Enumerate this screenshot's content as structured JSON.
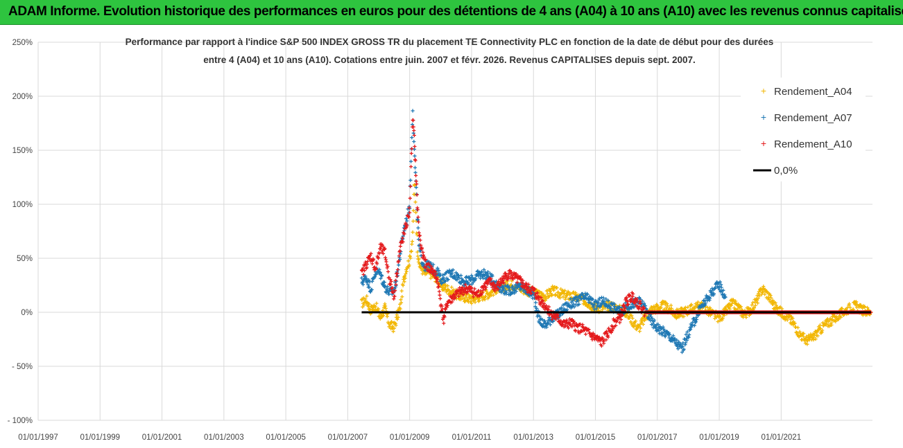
{
  "banner": {
    "text": "ADAM Informe. Evolution historique des performances en euros pour des détentions de 4 ans (A04) à 10 ans (A10) avec les revenus connus capitalisés"
  },
  "colors": {
    "banner_bg": "#2ec43f",
    "A04": "#f2b705",
    "A07": "#1f78b4",
    "A10": "#e41a1c",
    "zero_line": "#000000",
    "grid": "#d9d9d9"
  },
  "chart_data": {
    "type": "scatter",
    "title_line1": "Performance par rapport à l'indice S&P 500 INDEX GROSS TR  du placement TE Connectivity PLC en fonction de la date de début pour des durées",
    "title_line2": "entre 4 (A04) et 10 ans (A10). Cotations entre juin. 2007 et févr. 2026. Revenus CAPITALISES depuis sept. 2007.",
    "x_tick_labels": [
      "01/01/1997",
      "01/01/1999",
      "01/01/2001",
      "01/01/2003",
      "01/01/2005",
      "01/01/2007",
      "01/01/2009",
      "01/01/2011",
      "01/01/2013",
      "01/01/2015",
      "01/01/2017",
      "01/01/2019",
      "01/01/2021"
    ],
    "y_tick_labels": [
      "250%",
      "200%",
      "150%",
      "100%",
      "50%",
      "0%",
      "- 50%",
      "- 100%"
    ],
    "y_ticks": [
      250,
      200,
      150,
      100,
      50,
      0,
      -50,
      -100
    ],
    "ylim": [
      -100,
      250
    ],
    "xlim": [
      1997.0,
      2023.95
    ],
    "grid": true,
    "legend_position": "top-right",
    "legend": [
      {
        "key": "A04",
        "label": "Rendement_A04"
      },
      {
        "key": "A07",
        "label": "Rendement_A07"
      },
      {
        "key": "A10",
        "label": "Rendement_A10"
      },
      {
        "key": "zero",
        "label": "0,0%"
      }
    ],
    "series": [
      {
        "name": "Rendement_A04",
        "key": "A04",
        "x": [
          2007.45,
          2007.6,
          2007.75,
          2007.9,
          2008.05,
          2008.2,
          2008.35,
          2008.5,
          2008.6,
          2008.7,
          2008.8,
          2008.9,
          2009.0,
          2009.1,
          2009.15,
          2009.2,
          2009.25,
          2009.3,
          2009.4,
          2009.5,
          2009.6,
          2009.75,
          2009.9,
          2010.0,
          2010.2,
          2010.4,
          2010.6,
          2010.8,
          2011.0,
          2011.2,
          2011.4,
          2011.6,
          2011.8,
          2012.0,
          2012.2,
          2012.4,
          2012.6,
          2012.8,
          2013.0,
          2013.2,
          2013.4,
          2013.6,
          2013.8,
          2014.0,
          2014.2,
          2014.4,
          2014.6,
          2014.8,
          2015.0,
          2015.2,
          2015.4,
          2015.6,
          2015.8,
          2016.0,
          2016.2,
          2016.4,
          2016.6,
          2016.8,
          2017.0,
          2017.2,
          2017.4,
          2017.6,
          2017.8,
          2018.0,
          2018.2,
          2018.4,
          2018.6,
          2018.8,
          2019.0,
          2019.2,
          2019.4,
          2019.6,
          2019.8,
          2020.0,
          2020.2,
          2020.4,
          2020.6,
          2020.8,
          2021.0,
          2021.2,
          2021.4,
          2021.6,
          2021.8,
          2022.0,
          2022.2,
          2022.4,
          2022.6,
          2022.8,
          2023.0,
          2023.2,
          2023.4,
          2023.6,
          2023.9
        ],
        "y": [
          8,
          12,
          2,
          6,
          -5,
          4,
          -12,
          -14,
          -4,
          6,
          28,
          42,
          48,
          70,
          120,
          95,
          60,
          45,
          40,
          36,
          38,
          34,
          32,
          25,
          22,
          18,
          15,
          14,
          12,
          14,
          16,
          18,
          22,
          24,
          25,
          26,
          22,
          20,
          18,
          16,
          15,
          20,
          18,
          16,
          15,
          14,
          12,
          8,
          5,
          4,
          6,
          5,
          2,
          0,
          -8,
          -15,
          -5,
          2,
          4,
          6,
          3,
          -2,
          0,
          2,
          4,
          6,
          2,
          -2,
          -5,
          0,
          8,
          5,
          -2,
          2,
          10,
          22,
          15,
          5,
          0,
          -4,
          -10,
          -20,
          -26,
          -24,
          -18,
          -12,
          -8,
          -4,
          0,
          4,
          6,
          2,
          0
        ]
      },
      {
        "name": "Rendement_A07",
        "key": "A07",
        "x": [
          2007.45,
          2007.6,
          2007.75,
          2007.9,
          2008.05,
          2008.2,
          2008.35,
          2008.5,
          2008.6,
          2008.7,
          2008.8,
          2008.9,
          2009.0,
          2009.1,
          2009.15,
          2009.2,
          2009.25,
          2009.3,
          2009.4,
          2009.5,
          2009.6,
          2009.75,
          2009.9,
          2010.0,
          2010.2,
          2010.4,
          2010.6,
          2010.8,
          2011.0,
          2011.2,
          2011.4,
          2011.6,
          2011.8,
          2012.0,
          2012.2,
          2012.4,
          2012.6,
          2012.8,
          2013.0,
          2013.2,
          2013.4,
          2013.6,
          2013.8,
          2014.0,
          2014.2,
          2014.4,
          2014.6,
          2014.8,
          2015.0,
          2015.2,
          2015.4,
          2015.6,
          2015.8,
          2016.0,
          2016.2,
          2016.4,
          2016.6,
          2016.8,
          2017.0,
          2017.2,
          2017.4,
          2017.6,
          2017.8,
          2018.0,
          2018.2,
          2018.4,
          2018.6,
          2018.8,
          2019.0,
          2019.2
        ],
        "y": [
          28,
          32,
          22,
          38,
          36,
          24,
          18,
          20,
          35,
          55,
          75,
          85,
          100,
          190,
          150,
          120,
          90,
          60,
          48,
          42,
          44,
          40,
          38,
          30,
          34,
          36,
          32,
          28,
          30,
          34,
          36,
          32,
          26,
          22,
          20,
          22,
          24,
          20,
          16,
          -8,
          -12,
          -5,
          -2,
          4,
          8,
          10,
          14,
          12,
          6,
          10,
          8,
          4,
          0,
          5,
          8,
          10,
          4,
          -8,
          -14,
          -18,
          -22,
          -28,
          -34,
          -20,
          -8,
          4,
          12,
          20,
          26,
          14
        ]
      },
      {
        "name": "Rendement_A10",
        "key": "A10",
        "x": [
          2007.45,
          2007.6,
          2007.75,
          2007.9,
          2008.05,
          2008.2,
          2008.35,
          2008.5,
          2008.6,
          2008.7,
          2008.8,
          2008.9,
          2009.0,
          2009.1,
          2009.15,
          2009.2,
          2009.25,
          2009.3,
          2009.4,
          2009.5,
          2009.6,
          2009.75,
          2009.9,
          2010.0,
          2010.1,
          2010.2,
          2010.4,
          2010.6,
          2010.8,
          2011.0,
          2011.2,
          2011.4,
          2011.6,
          2011.8,
          2012.0,
          2012.2,
          2012.4,
          2012.6,
          2012.8,
          2013.0,
          2013.2,
          2013.4,
          2013.6,
          2013.8,
          2014.0,
          2014.2,
          2014.4,
          2014.6,
          2014.8,
          2015.0,
          2015.2,
          2015.4,
          2015.6,
          2015.8,
          2016.0,
          2016.2,
          2016.6,
          2017.0,
          2017.5,
          2018.0,
          2018.5,
          2019.0,
          2019.5,
          2020.0,
          2020.5,
          2021.0,
          2021.5,
          2022.0,
          2022.5,
          2023.0,
          2023.5,
          2023.9
        ],
        "y": [
          35,
          45,
          52,
          40,
          60,
          55,
          30,
          15,
          40,
          60,
          70,
          82,
          95,
          180,
          160,
          130,
          100,
          75,
          55,
          45,
          42,
          38,
          30,
          10,
          -8,
          8,
          14,
          18,
          22,
          20,
          16,
          24,
          28,
          22,
          30,
          36,
          32,
          28,
          22,
          20,
          12,
          5,
          -2,
          -6,
          -12,
          -10,
          -14,
          -16,
          -20,
          -24,
          -28,
          -20,
          -10,
          -5,
          10,
          15,
          0,
          0,
          0,
          0,
          0,
          0,
          0,
          0,
          0,
          0,
          0,
          0,
          0,
          0,
          0,
          0
        ]
      }
    ],
    "zero_line": {
      "label": "0,0%",
      "x_range": [
        2007.45,
        2023.9
      ],
      "y": 0
    }
  }
}
